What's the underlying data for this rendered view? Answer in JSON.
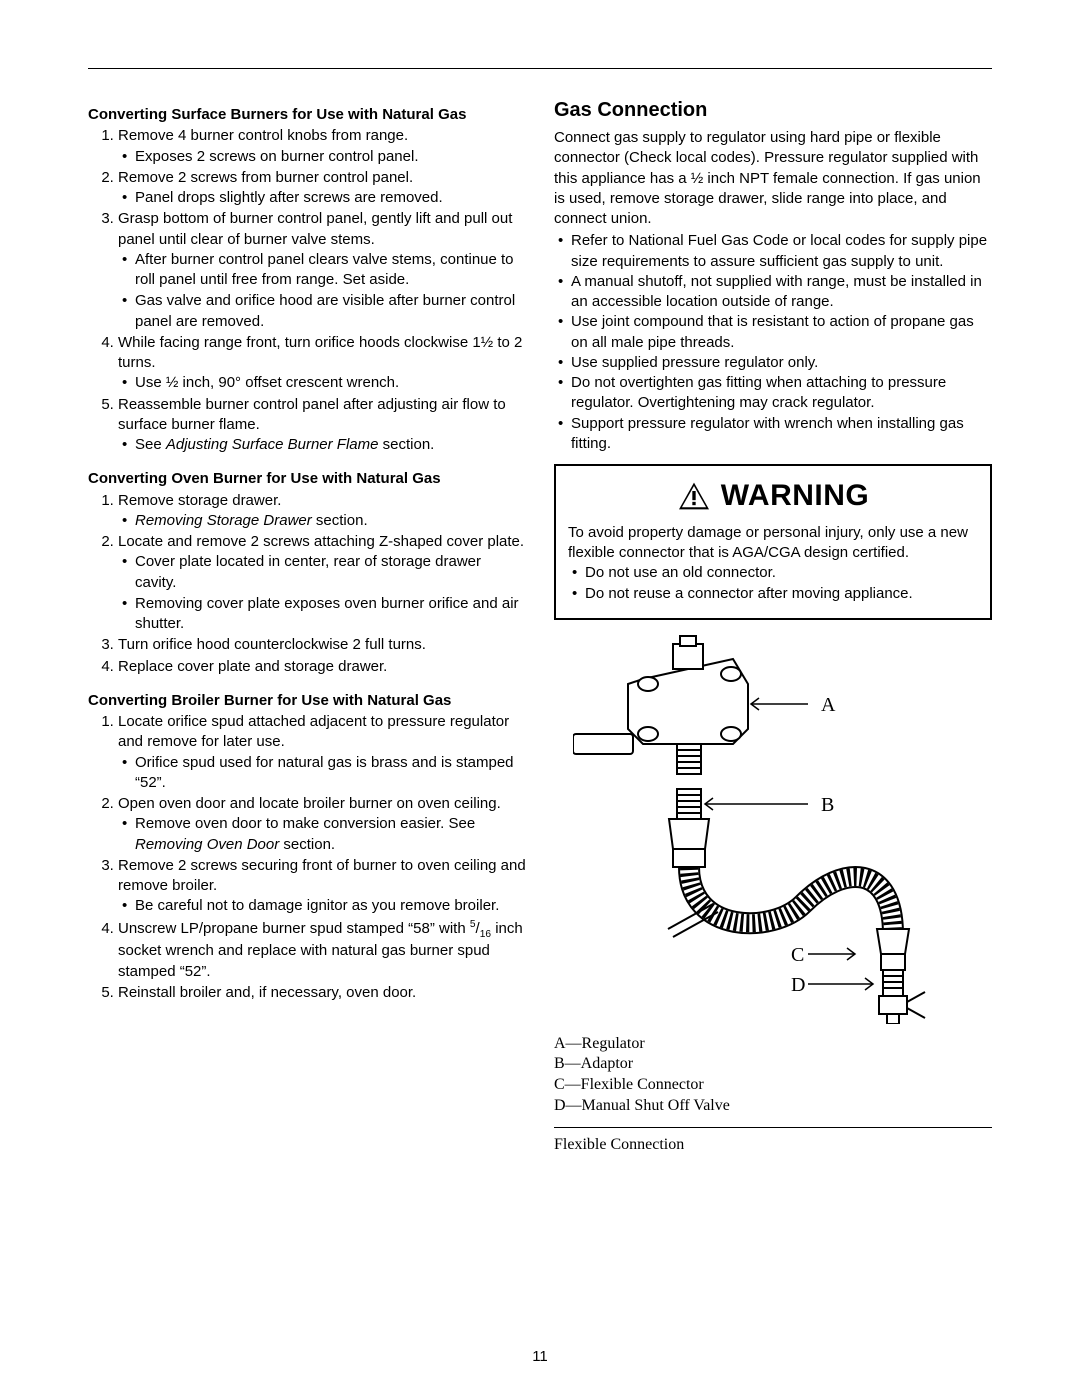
{
  "page_number": "11",
  "left": {
    "surface": {
      "heading": "Converting Surface Burners for Use with Natural Gas",
      "items": [
        {
          "t": "Remove 4 burner control knobs from range.",
          "sub": [
            "Exposes 2 screws on burner control panel."
          ]
        },
        {
          "t": "Remove 2 screws from burner control panel.",
          "sub": [
            "Panel drops slightly after screws are removed."
          ]
        },
        {
          "t": "Grasp bottom of burner control panel, gently lift and pull out panel until clear of burner valve stems.",
          "sub": [
            "After burner control panel clears valve stems, continue to roll panel until free from range. Set aside.",
            "Gas valve and orifice hood are visible after burner control panel are removed."
          ]
        },
        {
          "t_html": "While facing range front, turn orifice hoods clockwise 1½ to 2 turns.",
          "sub_html": [
            "Use ½ inch, 90° offset crescent wrench."
          ]
        },
        {
          "t": "Reassemble burner control panel after adjusting air flow to surface burner flame.",
          "sub_html": [
            "See <span class=\"italic\">Adjusting Surface Burner Flame</span> section."
          ]
        }
      ]
    },
    "oven": {
      "heading": "Converting Oven Burner for Use with Natural Gas",
      "items": [
        {
          "t": "Remove storage drawer.",
          "sub_html": [
            "<span class=\"italic\">Removing Storage Drawer</span> section."
          ]
        },
        {
          "t": "Locate and remove 2 screws attaching Z-shaped cover plate.",
          "sub": [
            "Cover plate located in center, rear of storage drawer cavity.",
            "Removing cover plate exposes oven burner orifice and air shutter."
          ]
        },
        {
          "t": "Turn orifice hood counterclockwise 2 full turns."
        },
        {
          "t": "Replace cover plate and storage drawer."
        }
      ]
    },
    "broiler": {
      "heading": "Converting Broiler Burner for Use with Natural Gas",
      "items": [
        {
          "t": "Locate orifice spud attached adjacent to pressure regulator and remove for later use.",
          "sub": [
            "Orifice spud used for natural gas is brass and is stamped “52”."
          ]
        },
        {
          "t": "Open oven door and locate broiler burner on oven ceiling.",
          "sub_html": [
            "Remove oven door to make conversion easier. See <span class=\"italic\">Removing Oven Door</span> section."
          ]
        },
        {
          "t": "Remove 2 screws securing front of burner to oven ceiling and remove broiler.",
          "sub": [
            "Be careful not to damage ignitor as you remove broiler."
          ]
        },
        {
          "t_html": "Unscrew LP/propane burner spud stamped “58” with <span class=\"sup\">5</span>/<span class=\"sub\">16</span> inch socket wrench and replace with natural gas burner spud stamped “52”."
        },
        {
          "t": "Reinstall broiler and, if necessary, oven door."
        }
      ]
    }
  },
  "right": {
    "heading": "Gas Connection",
    "intro_html": "Connect gas supply to regulator using hard pipe or flexible connector (Check local codes). Pressure regulator supplied with this appliance has a ½ inch NPT female connection. If gas union is used, remove storage drawer, slide range into place, and connect union.",
    "bullets": [
      "Refer to National Fuel Gas Code or local codes for supply pipe size requirements to assure sufficient gas supply to unit.",
      "A manual shutoff, not supplied with range, must be installed in an accessible location outside of range.",
      "Use joint compound that is resistant to action of propane gas on all male pipe threads.",
      "Use supplied pressure regulator only.",
      "Do not overtighten gas fitting when attaching to pressure regulator. Overtightening may crack regulator.",
      "Support pressure regulator with wrench when installing gas fitting."
    ],
    "warning": {
      "label": "WARNING",
      "text": "To avoid property damage or personal injury, only use a new flexible connector that is AGA/CGA design certified.",
      "bullets": [
        "Do not use an old connector.",
        "Do not reuse a connector after moving appliance."
      ]
    },
    "diagram_labels": {
      "A": "A",
      "B": "B",
      "C": "C",
      "D": "D"
    },
    "legend": [
      "A—Regulator",
      "B—Adaptor",
      "C—Flexible Connector",
      "D—Manual Shut Off Valve"
    ],
    "caption": "Flexible Connection"
  },
  "colors": {
    "text": "#000000",
    "bg": "#ffffff",
    "rule": "#000000"
  }
}
